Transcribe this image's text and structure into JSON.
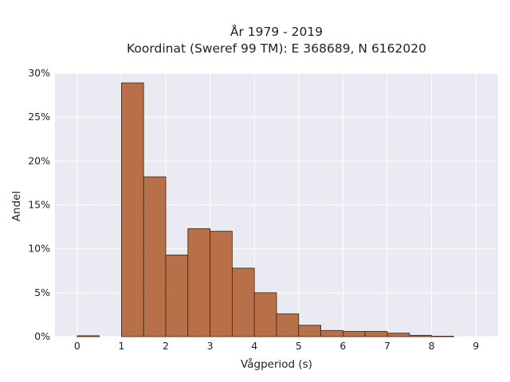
{
  "chart_data": {
    "type": "bar",
    "title_line1": "År 1979 - 2019",
    "title_line2": "Koordinat (Sweref 99 TM): E 368689, N 6162020",
    "xlabel": "Vågperiod (s)",
    "ylabel": "Andel",
    "xlim": [
      -0.5,
      9.5
    ],
    "ylim": [
      0,
      30
    ],
    "xticks": [
      0,
      1,
      2,
      3,
      4,
      5,
      6,
      7,
      8,
      9
    ],
    "yticks": [
      0,
      5,
      10,
      15,
      20,
      25,
      30
    ],
    "ytick_labels": [
      "0%",
      "5%",
      "10%",
      "15%",
      "20%",
      "25%",
      "30%"
    ],
    "bin_width": 0.5,
    "bins": [
      {
        "start": 0.0,
        "value": 0.1
      },
      {
        "start": 0.5,
        "value": 0.0
      },
      {
        "start": 1.0,
        "value": 28.9
      },
      {
        "start": 1.5,
        "value": 18.2
      },
      {
        "start": 2.0,
        "value": 9.3
      },
      {
        "start": 2.5,
        "value": 12.3
      },
      {
        "start": 3.0,
        "value": 12.0
      },
      {
        "start": 3.5,
        "value": 7.8
      },
      {
        "start": 4.0,
        "value": 5.0
      },
      {
        "start": 4.5,
        "value": 2.6
      },
      {
        "start": 5.0,
        "value": 1.3
      },
      {
        "start": 5.5,
        "value": 0.7
      },
      {
        "start": 6.0,
        "value": 0.6
      },
      {
        "start": 6.5,
        "value": 0.6
      },
      {
        "start": 7.0,
        "value": 0.4
      },
      {
        "start": 7.5,
        "value": 0.15
      },
      {
        "start": 8.0,
        "value": 0.05
      }
    ],
    "grid": true,
    "colors": {
      "bar_fill": "#b5693f",
      "bar_stroke": "#3d2414",
      "plot_background": "#eaeaf2",
      "grid": "#ffffff"
    }
  }
}
